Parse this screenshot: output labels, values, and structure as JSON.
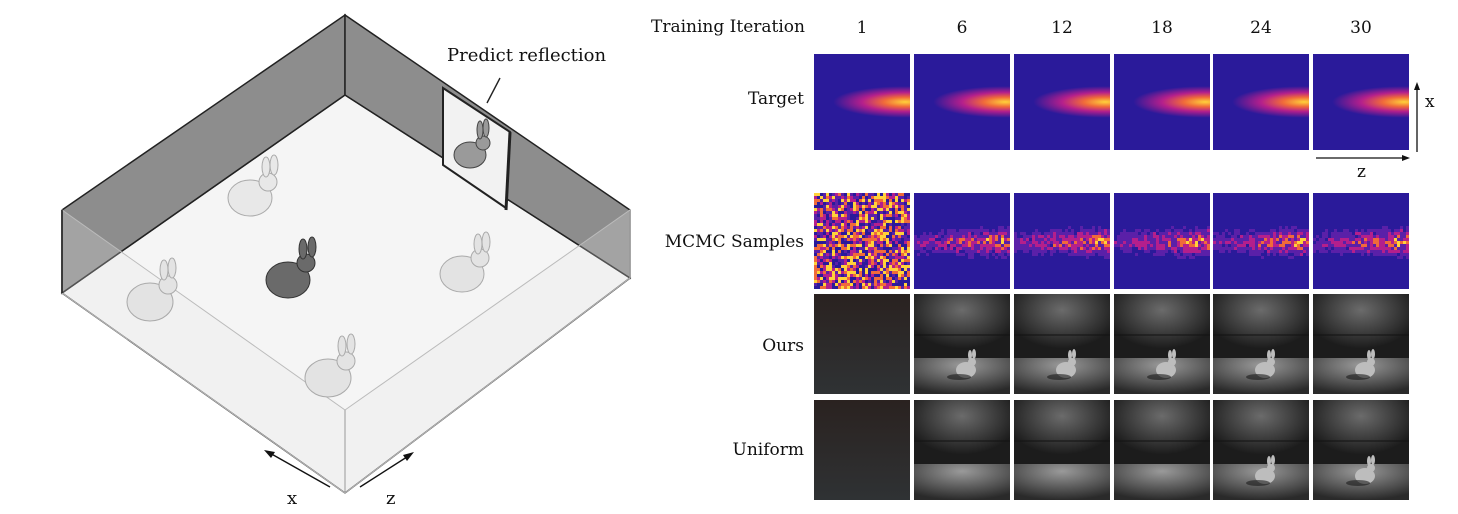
{
  "scene": {
    "predict_label": "Predict reflection",
    "axis_x": "x",
    "axis_z": "z"
  },
  "grid": {
    "header_label": "Training Iteration",
    "iterations": [
      "1",
      "6",
      "12",
      "18",
      "24",
      "30"
    ],
    "rows": [
      {
        "label": "Target",
        "kind": "heatmap"
      },
      {
        "label": "MCMC Samples",
        "kind": "samples"
      },
      {
        "label": "Ours",
        "kind": "render"
      },
      {
        "label": "Uniform",
        "kind": "render"
      }
    ],
    "axis_x": "x",
    "axis_z": "z"
  },
  "colors": {
    "heatmap_low": "#2a1a9a",
    "heatmap_mid": "#b41f8c",
    "heatmap_high": "#ffd23a",
    "wall": "#8f8f8f",
    "floor": "#f4f4f4"
  }
}
